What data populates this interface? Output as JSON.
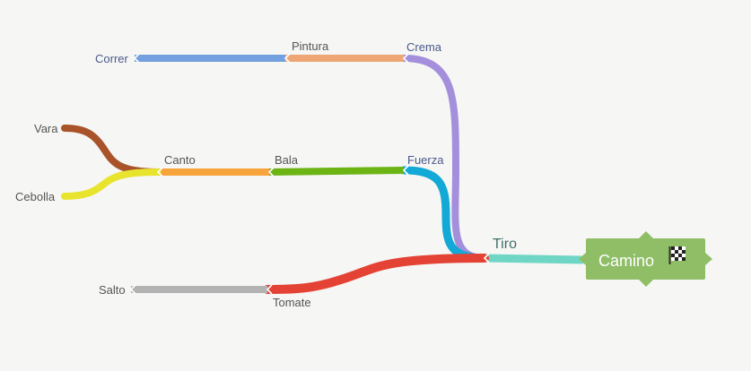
{
  "root": {
    "label": "Camino",
    "icon": "checkered-flag-icon",
    "color": "#8fbe66"
  },
  "nodes": {
    "tiro": {
      "label": "Tiro",
      "color": "#6fd6c6"
    },
    "crema": {
      "label": "Crema",
      "color": "#a48fdc"
    },
    "pintura": {
      "label": "Pintura",
      "color": "#eea675"
    },
    "correr": {
      "label": "Correr",
      "color": "#74a0e0"
    },
    "fuerza": {
      "label": "Fuerza",
      "color": "#12a9d6"
    },
    "bala": {
      "label": "Bala",
      "color": "#6bb414"
    },
    "canto": {
      "label": "Canto",
      "color": "#f7a43c"
    },
    "vara": {
      "label": "Vara",
      "color": "#a8532a"
    },
    "cebolla": {
      "label": "Cebolla",
      "color": "#e8e42e"
    },
    "tomate": {
      "label": "Tomate",
      "color": "#e44234"
    },
    "salto": {
      "label": "Salto",
      "color": "#b3b3b3"
    }
  }
}
